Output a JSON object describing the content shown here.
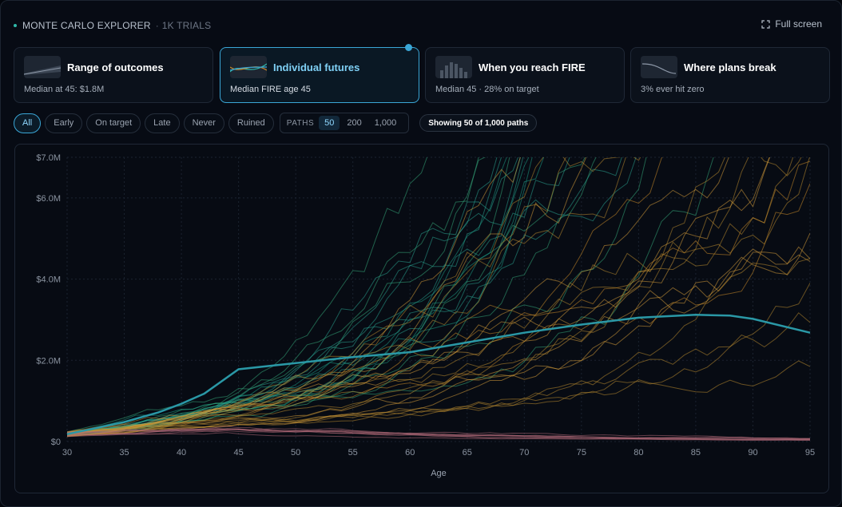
{
  "header": {
    "app_title": "MONTE CARLO EXPLORER",
    "separator": "·",
    "trials": "1K TRIALS",
    "fullscreen_label": "Full screen"
  },
  "cards": [
    {
      "title": "Range of outcomes",
      "subtitle": "Median at 45: $1.8M",
      "active": false,
      "thumb_icon": "fan-chart-thumbnail"
    },
    {
      "title": "Individual futures",
      "subtitle": "Median FIRE age 45",
      "active": true,
      "thumb_icon": "paths-thumbnail"
    },
    {
      "title": "When you reach FIRE",
      "subtitle": "Median 45 · 28% on target",
      "active": false,
      "thumb_icon": "histogram-thumbnail"
    },
    {
      "title": "Where plans break",
      "subtitle": "3% ever hit zero",
      "active": false,
      "thumb_icon": "decline-curve-thumbnail"
    }
  ],
  "filters": {
    "chips": [
      "All",
      "Early",
      "On target",
      "Late",
      "Never",
      "Ruined"
    ],
    "active_chip": "All",
    "paths_label": "PATHS",
    "paths_options": [
      "50",
      "200",
      "1,000"
    ],
    "paths_selected": "50",
    "showing": "Showing 50 of 1,000 paths"
  },
  "colors": {
    "accent": "#3aa6d6",
    "median_line": "#2a98a6",
    "early_paths": "#1e9e86",
    "late_paths": "#c98a2a",
    "ruined_paths": "#b06a78"
  },
  "chart_data": {
    "type": "line",
    "xlabel": "Age",
    "ylabel": "",
    "xlim": [
      30,
      95
    ],
    "ylim": [
      0,
      7000000
    ],
    "x_ticks": [
      30,
      35,
      40,
      45,
      50,
      55,
      60,
      65,
      70,
      75,
      80,
      85,
      90,
      95
    ],
    "y_ticks": [
      {
        "value": 0,
        "label": "$0"
      },
      {
        "value": 2000000,
        "label": "$2.0M"
      },
      {
        "value": 4000000,
        "label": "$4.0M"
      },
      {
        "value": 6000000,
        "label": "$6.0M"
      },
      {
        "value": 7000000,
        "label": "$7.0M"
      }
    ],
    "grid": true,
    "median": {
      "x": [
        30,
        32,
        35,
        38,
        40,
        42,
        45,
        50,
        55,
        60,
        65,
        70,
        75,
        80,
        85,
        88,
        90,
        95
      ],
      "values": [
        180000,
        300000,
        480000,
        720000,
        930000,
        1180000,
        1780000,
        1930000,
        2080000,
        2200000,
        2440000,
        2680000,
        2880000,
        3050000,
        3120000,
        3100000,
        3020000,
        2680000
      ]
    },
    "path_count_shown": 50,
    "path_count_total": 1000
  }
}
